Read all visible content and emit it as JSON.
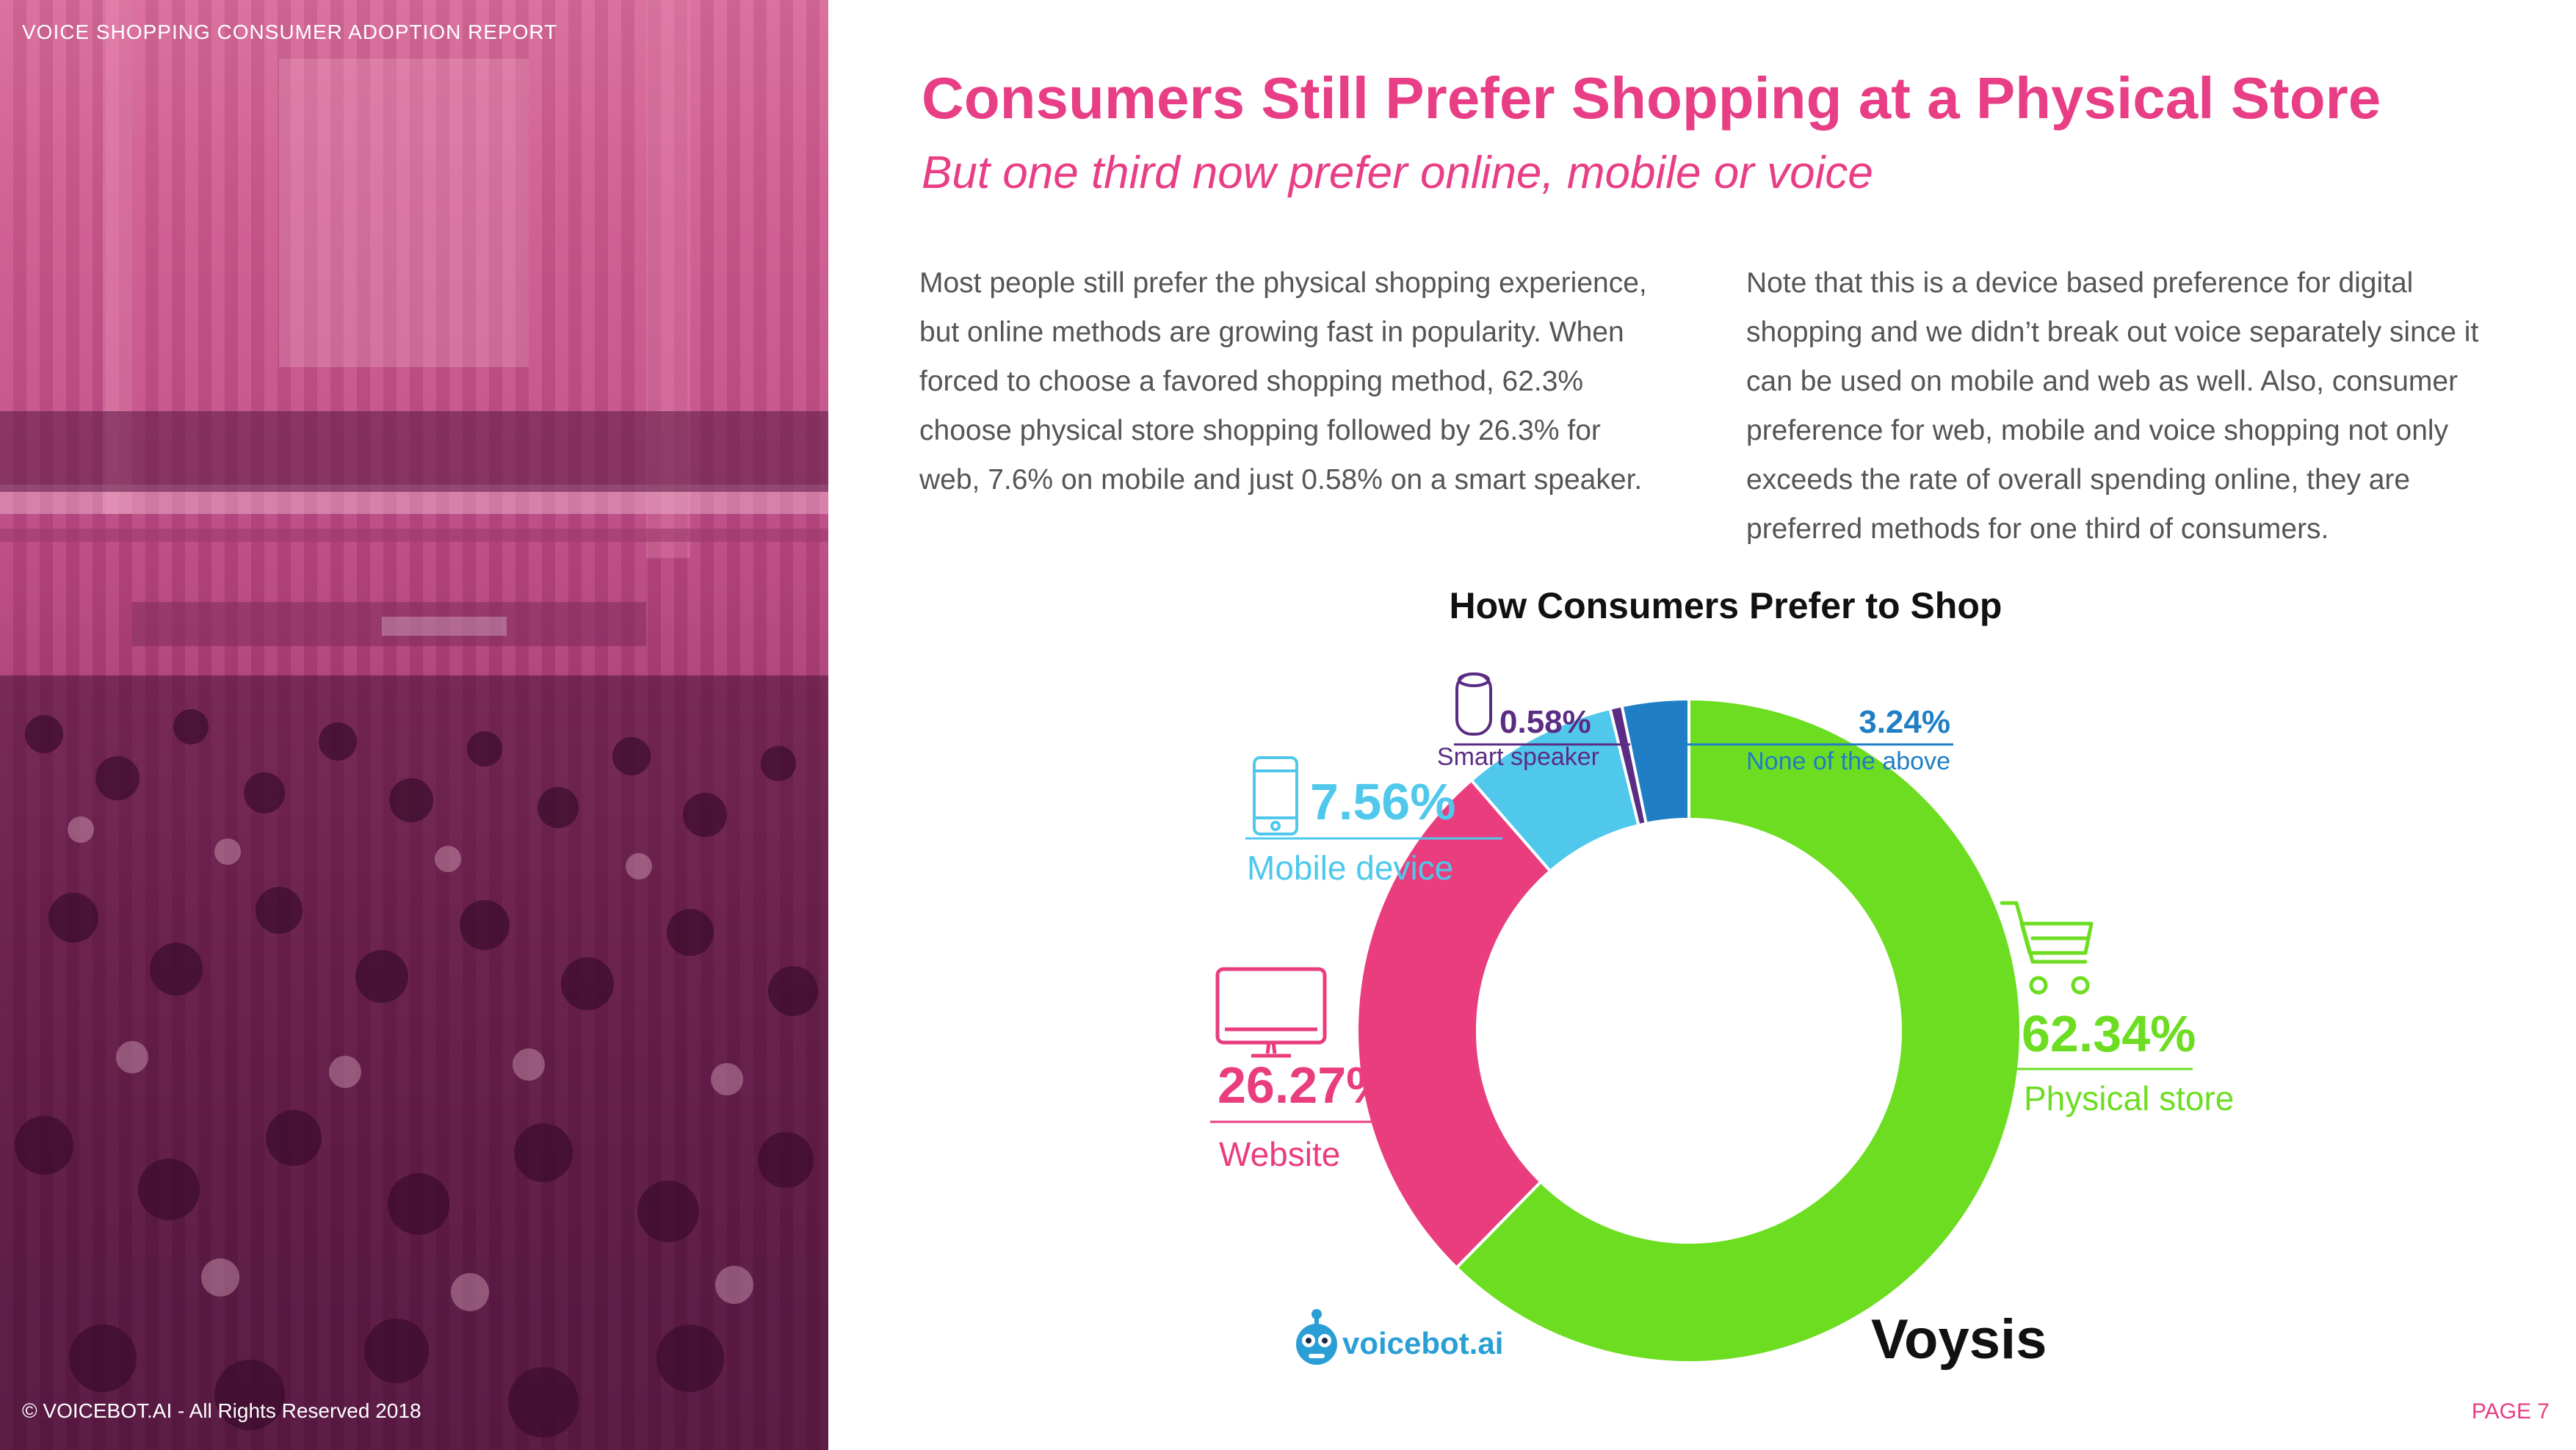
{
  "header": {
    "report_label": "VOICE SHOPPING CONSUMER ADOPTION REPORT"
  },
  "title": "Consumers Still Prefer Shopping at a Physical Store",
  "subtitle": "But one third now prefer online, mobile or voice",
  "paragraph_left": "Most people still prefer the physical shopping experience, but online methods are growing fast in popularity. When forced to choose a favored shopping method, 62.3% choose physical store shopping followed by 26.3% for web, 7.6% on mobile and just 0.58% on a smart speaker.",
  "paragraph_right": "Note that this is a device based preference for digital shopping and we didn’t break out voice separately since it can be used on mobile and web as well. Also, consumer preference for web, mobile and voice  shopping not only exceeds the rate of overall spending online, they are preferred methods for one third of consumers.",
  "chart_data": {
    "type": "pie",
    "title": "How Consumers Prefer to Shop",
    "donut": true,
    "slices": [
      {
        "label": "Physical store",
        "value": 62.34,
        "value_label": "62.34%",
        "color": "#6ddd22",
        "icon": "shopping-cart-icon"
      },
      {
        "label": "Website",
        "value": 26.27,
        "value_label": "26.27%",
        "color": "#e93d7e",
        "icon": "monitor-icon"
      },
      {
        "label": "Mobile device",
        "value": 7.56,
        "value_label": "7.56%",
        "color": "#4fc8ec",
        "icon": "smartphone-icon"
      },
      {
        "label": "Smart speaker",
        "value": 0.58,
        "value_label": "0.58%",
        "color": "#5b2c83",
        "icon": "smart-speaker-icon"
      },
      {
        "label": "None of the above",
        "value": 3.24,
        "value_label": "3.24%",
        "color": "#1f7ec4",
        "icon": ""
      }
    ]
  },
  "logos": {
    "voicebot": "voicebot.ai",
    "voysis": "Voysis"
  },
  "footer": {
    "copyright": "© VOICEBOT.AI - All Rights Reserved 2018",
    "page_number": "PAGE 7"
  }
}
